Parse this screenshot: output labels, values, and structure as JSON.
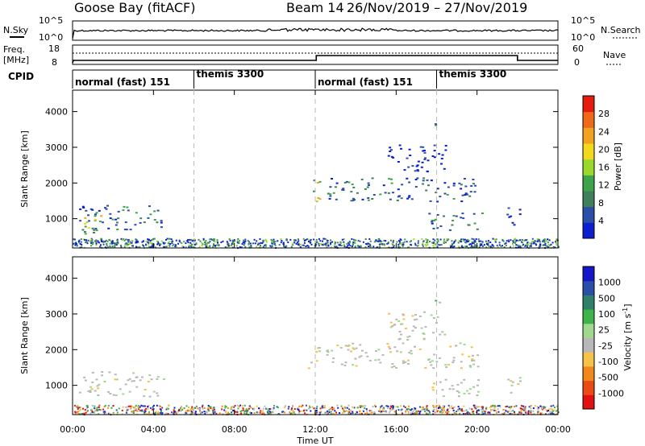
{
  "header": {
    "station": "Goose Bay (fitACF)",
    "beam": "Beam 14",
    "dates": "26/Nov/2019 – 27/Nov/2019"
  },
  "panels": {
    "nsky": {
      "label": "N.Sky",
      "right_label": "N.Search",
      "tick_top": "10^5",
      "tick_bot": "10^0"
    },
    "freq": {
      "label_line1": "Freq.",
      "label_line2": "[MHz]",
      "tick_top": "18",
      "tick_bot": "8",
      "right_label": "Nave",
      "right_tick_top": "60",
      "right_tick_bot": "0"
    },
    "cpid": {
      "label": "CPID",
      "segments": [
        {
          "start_hour": 0,
          "text": "normal (fast) 151"
        },
        {
          "start_hour": 6,
          "text": "themis 3300"
        },
        {
          "start_hour": 12,
          "text": "normal (fast) 151"
        },
        {
          "start_hour": 18,
          "text": "themis 3300"
        }
      ]
    }
  },
  "colors": {
    "power": [
      "#0b1fd1",
      "#2a4fa8",
      "#3f7f5a",
      "#3fa34a",
      "#9ad82a",
      "#f3d820",
      "#f2a21f",
      "#ee6a18",
      "#e61b10"
    ],
    "velocity": [
      "#e21010",
      "#ec4a14",
      "#f0881a",
      "#f6c24a",
      "#b8b8b8",
      "#a0d890",
      "#3fb34a",
      "#2f7f6a",
      "#2a4fa8",
      "#1515c9"
    ],
    "ground": "#b0b0b0"
  },
  "chart_data": [
    {
      "type": "heatmap",
      "name": "power",
      "ylabel": "Slant Range [km]",
      "ylim": [
        180,
        4600
      ],
      "yticks": [
        1000,
        2000,
        3000,
        4000
      ],
      "x_range_hours": [
        0,
        24
      ],
      "colorbar": {
        "label": "Power [dB]",
        "range": [
          0,
          32
        ],
        "ticks": [
          "4",
          "8",
          "12",
          "16",
          "20",
          "24",
          "28"
        ]
      },
      "scatter_regions": [
        {
          "t0": 0.3,
          "t1": 4.5,
          "r0": 700,
          "r1": 1400,
          "level": "med"
        },
        {
          "t0": 0.2,
          "t1": 1.5,
          "r0": 500,
          "r1": 1100,
          "level": "high"
        },
        {
          "t0": 11.6,
          "t1": 12.2,
          "r0": 1500,
          "r1": 2100,
          "level": "high"
        },
        {
          "t0": 12.5,
          "t1": 20.0,
          "r0": 1500,
          "r1": 2200,
          "level": "med"
        },
        {
          "t0": 15.5,
          "t1": 18.5,
          "r0": 2300,
          "r1": 3100,
          "level": "low"
        },
        {
          "t0": 17.9,
          "t1": 18.2,
          "r0": 3300,
          "r1": 3700,
          "level": "med"
        },
        {
          "t0": 17.5,
          "t1": 20.3,
          "r0": 700,
          "r1": 1200,
          "level": "med"
        },
        {
          "t0": 21.4,
          "t1": 22.1,
          "r0": 800,
          "r1": 1400,
          "level": "low"
        }
      ]
    },
    {
      "type": "heatmap",
      "name": "velocity",
      "ylabel": "Slant Range [km]",
      "ylim": [
        180,
        4600
      ],
      "yticks": [
        1000,
        2000,
        3000,
        4000
      ],
      "x_range_hours": [
        0,
        24
      ],
      "colorbar": {
        "label": "Velocity [m s^-1]",
        "ticks": [
          "1000",
          "500",
          "100",
          "25",
          "-25",
          "-100",
          "-500",
          "-1000"
        ]
      },
      "scatter_regions": [
        {
          "t0": 0.3,
          "t1": 4.5,
          "r0": 700,
          "r1": 1400,
          "level": "ground"
        },
        {
          "t0": 11.6,
          "t1": 12.2,
          "r0": 1500,
          "r1": 2100,
          "level": "ground"
        },
        {
          "t0": 12.5,
          "t1": 20.0,
          "r0": 1500,
          "r1": 2200,
          "level": "ground"
        },
        {
          "t0": 15.5,
          "t1": 18.5,
          "r0": 2300,
          "r1": 3100,
          "level": "ground"
        },
        {
          "t0": 17.9,
          "t1": 18.2,
          "r0": 3300,
          "r1": 3700,
          "level": "pos"
        },
        {
          "t0": 17.5,
          "t1": 20.3,
          "r0": 700,
          "r1": 1200,
          "level": "ground"
        },
        {
          "t0": 21.4,
          "t1": 22.1,
          "r0": 800,
          "r1": 1400,
          "level": "ground"
        }
      ]
    }
  ],
  "xaxis": {
    "label": "Time UT",
    "ticks": [
      "00:00",
      "04:00",
      "08:00",
      "12:00",
      "16:00",
      "20:00",
      "00:00"
    ],
    "tick_hours": [
      0,
      4,
      8,
      12,
      16,
      20,
      24
    ]
  }
}
